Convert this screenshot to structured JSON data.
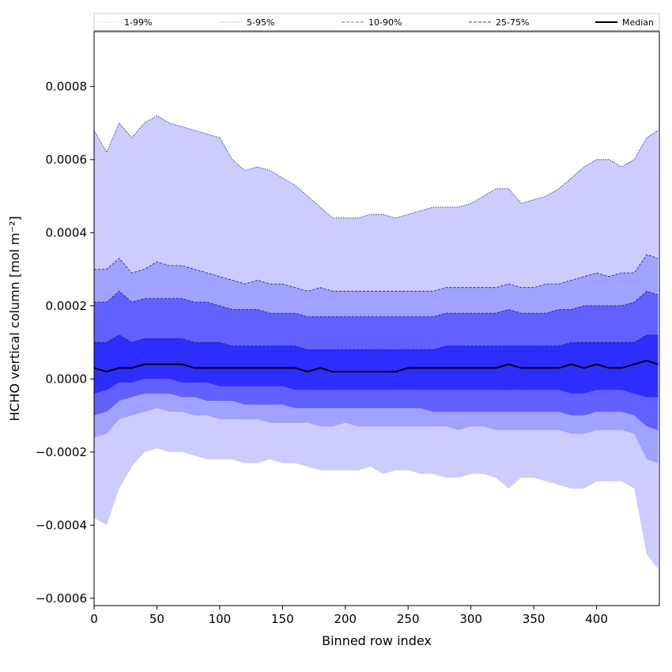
{
  "chart_data": {
    "type": "area",
    "title": "",
    "xlabel": "Binned row index",
    "ylabel": "HCHO vertical column [mol m⁻²]",
    "xlim": [
      0,
      450
    ],
    "ylim": [
      -0.00062,
      0.00095
    ],
    "xticks": [
      0,
      50,
      100,
      150,
      200,
      250,
      300,
      350,
      400
    ],
    "xtick_labels": [
      "0",
      "50",
      "100",
      "150",
      "200",
      "250",
      "300",
      "350",
      "400"
    ],
    "yticks": [
      -0.0006,
      -0.0004,
      -0.0002,
      0.0,
      0.0002,
      0.0004,
      0.0006,
      0.0008
    ],
    "ytick_labels": [
      "−0.0006",
      "−0.0004",
      "−0.0002",
      "0.0000",
      "0.0002",
      "0.0004",
      "0.0006",
      "0.0008"
    ],
    "grid": false,
    "legend_placement": "top",
    "legend": [
      {
        "label": "1-99%",
        "color": "#d8d8ff",
        "style": "dotted"
      },
      {
        "label": "5-95%",
        "color": "#9a9aff",
        "style": "dotted"
      },
      {
        "label": "10-90%",
        "color": "#6b6bff",
        "style": "dashed"
      },
      {
        "label": "25-75%",
        "color": "#3535ff",
        "style": "dashed"
      },
      {
        "label": "Median",
        "color": "#000000",
        "style": "solid"
      }
    ],
    "x": [
      0,
      10,
      20,
      30,
      40,
      50,
      60,
      70,
      80,
      90,
      100,
      110,
      120,
      130,
      140,
      150,
      160,
      170,
      180,
      190,
      200,
      210,
      220,
      230,
      240,
      250,
      260,
      270,
      280,
      290,
      300,
      310,
      320,
      330,
      340,
      350,
      360,
      370,
      380,
      390,
      400,
      410,
      420,
      430,
      440,
      449
    ],
    "series": [
      {
        "name": "1-99%",
        "color": "#ccccff",
        "upper": [
          0.00068,
          0.00062,
          0.0007,
          0.00066,
          0.0007,
          0.00072,
          0.0007,
          0.00069,
          0.00068,
          0.00067,
          0.00066,
          0.0006,
          0.00057,
          0.00058,
          0.00057,
          0.00055,
          0.00053,
          0.0005,
          0.00047,
          0.00044,
          0.00044,
          0.00044,
          0.00045,
          0.00045,
          0.00044,
          0.00045,
          0.00046,
          0.00047,
          0.00047,
          0.00047,
          0.00048,
          0.0005,
          0.00052,
          0.00052,
          0.00048,
          0.00049,
          0.0005,
          0.00052,
          0.00055,
          0.00058,
          0.0006,
          0.0006,
          0.00058,
          0.0006,
          0.00066,
          0.00068
        ],
        "lower": [
          -0.00038,
          -0.0004,
          -0.0003,
          -0.00024,
          -0.0002,
          -0.00019,
          -0.0002,
          -0.0002,
          -0.00021,
          -0.00022,
          -0.00022,
          -0.00022,
          -0.00023,
          -0.00023,
          -0.00022,
          -0.00023,
          -0.00023,
          -0.00024,
          -0.00025,
          -0.00025,
          -0.00025,
          -0.00025,
          -0.00024,
          -0.00026,
          -0.00025,
          -0.00025,
          -0.00026,
          -0.00026,
          -0.00027,
          -0.00027,
          -0.00026,
          -0.00026,
          -0.00027,
          -0.0003,
          -0.00027,
          -0.00027,
          -0.00028,
          -0.00029,
          -0.0003,
          -0.0003,
          -0.00028,
          -0.00028,
          -0.00028,
          -0.0003,
          -0.00048,
          -0.00052
        ]
      },
      {
        "name": "5-95%",
        "color": "#a1a1ff",
        "upper": [
          0.0003,
          0.0003,
          0.00033,
          0.00029,
          0.0003,
          0.00032,
          0.00031,
          0.00031,
          0.0003,
          0.00029,
          0.00028,
          0.00027,
          0.00026,
          0.00027,
          0.00026,
          0.00026,
          0.00025,
          0.00024,
          0.00025,
          0.00024,
          0.00024,
          0.00024,
          0.00024,
          0.00024,
          0.00024,
          0.00024,
          0.00024,
          0.00024,
          0.00025,
          0.00025,
          0.00025,
          0.00025,
          0.00025,
          0.00026,
          0.00025,
          0.00025,
          0.00026,
          0.00026,
          0.00027,
          0.00028,
          0.00029,
          0.00028,
          0.00029,
          0.00029,
          0.00034,
          0.00033
        ],
        "lower": [
          -0.00016,
          -0.00015,
          -0.00011,
          -0.0001,
          -9e-05,
          -8e-05,
          -9e-05,
          -9e-05,
          -0.0001,
          -0.0001,
          -0.00011,
          -0.00011,
          -0.00011,
          -0.00011,
          -0.00012,
          -0.00012,
          -0.00012,
          -0.00012,
          -0.00013,
          -0.00013,
          -0.00012,
          -0.00013,
          -0.00013,
          -0.00013,
          -0.00013,
          -0.00013,
          -0.00013,
          -0.00013,
          -0.00013,
          -0.00014,
          -0.00013,
          -0.00013,
          -0.00014,
          -0.00014,
          -0.00014,
          -0.00014,
          -0.00014,
          -0.00014,
          -0.00015,
          -0.00015,
          -0.00014,
          -0.00014,
          -0.00014,
          -0.00015,
          -0.00022,
          -0.00023
        ]
      },
      {
        "name": "10-90%",
        "color": "#6161ff",
        "upper": [
          0.00021,
          0.00021,
          0.00024,
          0.00021,
          0.00022,
          0.00022,
          0.00022,
          0.00022,
          0.00021,
          0.00021,
          0.0002,
          0.00019,
          0.00019,
          0.00019,
          0.00018,
          0.00018,
          0.00018,
          0.00017,
          0.00017,
          0.00017,
          0.00017,
          0.00017,
          0.00017,
          0.00017,
          0.00017,
          0.00017,
          0.00017,
          0.00017,
          0.00018,
          0.00018,
          0.00018,
          0.00018,
          0.00018,
          0.00019,
          0.00018,
          0.00018,
          0.00018,
          0.00019,
          0.00019,
          0.0002,
          0.0002,
          0.0002,
          0.0002,
          0.00021,
          0.00024,
          0.00023
        ],
        "lower": [
          -0.0001,
          -9e-05,
          -6e-05,
          -5e-05,
          -4e-05,
          -4e-05,
          -4e-05,
          -5e-05,
          -5e-05,
          -6e-05,
          -6e-05,
          -6e-05,
          -7e-05,
          -7e-05,
          -7e-05,
          -7e-05,
          -8e-05,
          -8e-05,
          -8e-05,
          -8e-05,
          -8e-05,
          -8e-05,
          -8e-05,
          -8e-05,
          -8e-05,
          -8e-05,
          -8e-05,
          -9e-05,
          -9e-05,
          -9e-05,
          -9e-05,
          -9e-05,
          -9e-05,
          -9e-05,
          -9e-05,
          -9e-05,
          -9e-05,
          -9e-05,
          -0.0001,
          -0.0001,
          -9e-05,
          -9e-05,
          -9e-05,
          -0.0001,
          -0.00013,
          -0.00014
        ]
      },
      {
        "name": "25-75%",
        "color": "#2d2dff",
        "upper": [
          0.0001,
          0.0001,
          0.00012,
          0.0001,
          0.00011,
          0.00011,
          0.00011,
          0.00011,
          0.0001,
          0.0001,
          0.0001,
          9e-05,
          9e-05,
          9e-05,
          9e-05,
          9e-05,
          9e-05,
          8e-05,
          8e-05,
          8e-05,
          8e-05,
          8e-05,
          8e-05,
          8e-05,
          8e-05,
          8e-05,
          8e-05,
          8e-05,
          9e-05,
          9e-05,
          9e-05,
          9e-05,
          9e-05,
          9e-05,
          9e-05,
          9e-05,
          9e-05,
          9e-05,
          0.0001,
          0.0001,
          0.0001,
          0.0001,
          0.0001,
          0.0001,
          0.00012,
          0.00012
        ],
        "lower": [
          -4e-05,
          -3e-05,
          -1e-05,
          -1e-05,
          0.0,
          0.0,
          0.0,
          -1e-05,
          -1e-05,
          -1e-05,
          -2e-05,
          -2e-05,
          -2e-05,
          -2e-05,
          -2e-05,
          -2e-05,
          -3e-05,
          -3e-05,
          -3e-05,
          -3e-05,
          -3e-05,
          -3e-05,
          -3e-05,
          -3e-05,
          -3e-05,
          -3e-05,
          -3e-05,
          -3e-05,
          -3e-05,
          -3e-05,
          -3e-05,
          -3e-05,
          -3e-05,
          -3e-05,
          -3e-05,
          -3e-05,
          -3e-05,
          -3e-05,
          -4e-05,
          -4e-05,
          -3e-05,
          -3e-05,
          -3e-05,
          -4e-05,
          -5e-05,
          -5e-05
        ]
      },
      {
        "name": "Median",
        "color": "#000000",
        "values": [
          3e-05,
          2e-05,
          3e-05,
          3e-05,
          4e-05,
          4e-05,
          4e-05,
          4e-05,
          3e-05,
          3e-05,
          3e-05,
          3e-05,
          3e-05,
          3e-05,
          3e-05,
          3e-05,
          3e-05,
          2e-05,
          3e-05,
          2e-05,
          2e-05,
          2e-05,
          2e-05,
          2e-05,
          2e-05,
          3e-05,
          3e-05,
          3e-05,
          3e-05,
          3e-05,
          3e-05,
          3e-05,
          3e-05,
          4e-05,
          3e-05,
          3e-05,
          3e-05,
          3e-05,
          4e-05,
          3e-05,
          4e-05,
          3e-05,
          3e-05,
          4e-05,
          5e-05,
          4e-05
        ]
      }
    ]
  }
}
